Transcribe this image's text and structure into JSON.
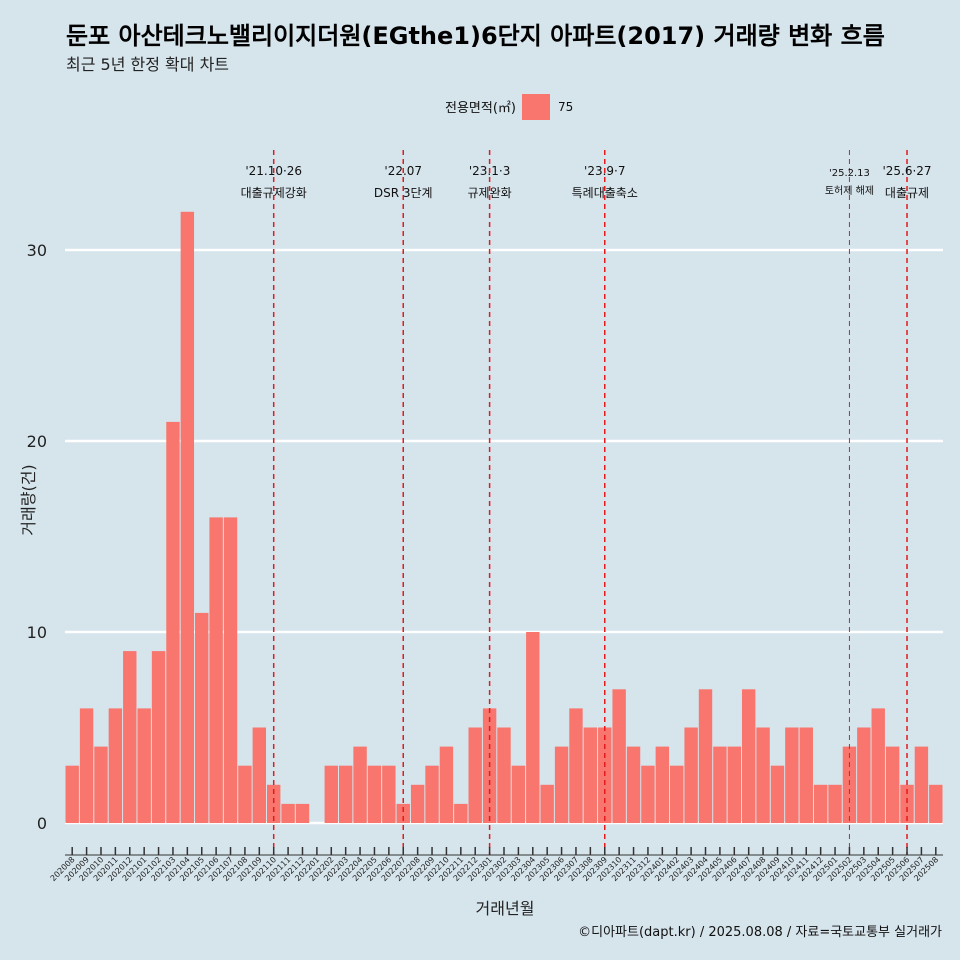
{
  "chart_data": {
    "type": "bar",
    "title": "둔포 아산테크노밸리이지더원(EGthe1)6단지 아파트(2017) 거래량 변화 흐름",
    "subtitle": "최근 5년 한정 확대 차트",
    "xlabel": "거래년월",
    "ylabel": "거래량(건)",
    "legend": {
      "title": "전용면적(㎡)",
      "position": "top",
      "entries": [
        {
          "label": "75",
          "color": "#f8766d"
        }
      ]
    },
    "ylim": [
      0,
      35
    ],
    "yticks": [
      0,
      10,
      20,
      30
    ],
    "grid": true,
    "categories": [
      "202008",
      "202009",
      "202010",
      "202011",
      "202012",
      "202101",
      "202102",
      "202103",
      "202104",
      "202105",
      "202106",
      "202107",
      "202108",
      "202109",
      "202110",
      "202111",
      "202112",
      "202201",
      "202202",
      "202203",
      "202204",
      "202205",
      "202206",
      "202207",
      "202208",
      "202209",
      "202210",
      "202211",
      "202212",
      "202301",
      "202302",
      "202303",
      "202304",
      "202305",
      "202306",
      "202307",
      "202308",
      "202309",
      "202310",
      "202311",
      "202312",
      "202401",
      "202402",
      "202403",
      "202404",
      "202405",
      "202406",
      "202407",
      "202408",
      "202409",
      "202410",
      "202411",
      "202412",
      "202501",
      "202502",
      "202503",
      "202504",
      "202505",
      "202506",
      "202507",
      "202508"
    ],
    "series": [
      {
        "name": "75",
        "color": "#f8766d",
        "values": [
          3,
          6,
          4,
          6,
          9,
          6,
          9,
          21,
          32,
          11,
          16,
          16,
          3,
          5,
          2,
          1,
          1,
          0,
          3,
          3,
          4,
          3,
          3,
          1,
          2,
          3,
          4,
          1,
          5,
          6,
          5,
          3,
          10,
          2,
          4,
          6,
          5,
          5,
          7,
          4,
          3,
          4,
          3,
          5,
          7,
          4,
          4,
          7,
          5,
          3,
          5,
          5,
          2,
          2,
          4,
          5,
          6,
          4,
          2,
          4,
          2
        ]
      }
    ],
    "annotations": [
      {
        "at": "202110",
        "date": "'21.10·26",
        "label": "대출규제강화",
        "size": "normal"
      },
      {
        "at": "202207",
        "date": "'22.07",
        "label": "DSR 3단계",
        "size": "normal"
      },
      {
        "at": "202301",
        "date": "'23.1·3",
        "label": "규제완화",
        "size": "normal"
      },
      {
        "at": "202309",
        "date": "'23.9·7",
        "label": "특례대출축소",
        "size": "normal"
      },
      {
        "at": "202502",
        "date": "'25.2.13",
        "label": "토허제 해제",
        "size": "small"
      },
      {
        "at": "202506",
        "date": "'25.6·27",
        "label": "대출규제",
        "size": "normal"
      }
    ],
    "caption": "©디아파트(dapt.kr) / 2025.08.08 / 자료=국토교통부 실거래가"
  }
}
